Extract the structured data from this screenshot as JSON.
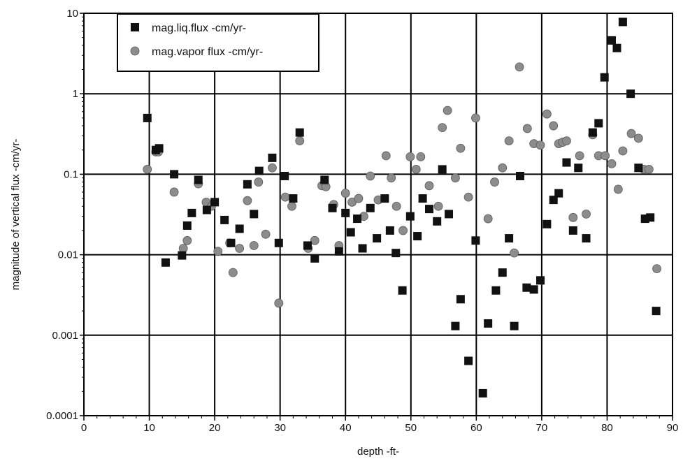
{
  "chart_data": {
    "type": "scatter",
    "xlabel": "depth -ft-",
    "ylabel": "magnitude of vertical flux -cm/yr-",
    "xlim": [
      0,
      90
    ],
    "ylim": [
      0.0001,
      10
    ],
    "y_scale": "log",
    "grid": true,
    "legend_position": "top-left",
    "x_ticks": [
      0,
      10,
      20,
      30,
      40,
      50,
      60,
      70,
      80,
      90
    ],
    "x_tick_labels": [
      "0",
      "10",
      "20",
      "30",
      "40",
      "50",
      "60",
      "70",
      "80",
      "90"
    ],
    "y_ticks": [
      0.0001,
      0.001,
      0.01,
      0.1,
      1,
      10
    ],
    "y_tick_labels": [
      "0.0001",
      "0.001",
      "0.01",
      "0.1",
      "1",
      "10"
    ],
    "series": [
      {
        "name": "mag.liq.flux -cm/yr-",
        "marker": "square",
        "color": "#111111",
        "points": [
          [
            9.7,
            0.5
          ],
          [
            11.0,
            0.2
          ],
          [
            11.5,
            0.21
          ],
          [
            12.5,
            0.008
          ],
          [
            13.8,
            0.1
          ],
          [
            15.0,
            0.0098
          ],
          [
            15.8,
            0.023
          ],
          [
            16.5,
            0.033
          ],
          [
            17.5,
            0.085
          ],
          [
            18.8,
            0.036
          ],
          [
            20.0,
            0.045
          ],
          [
            21.5,
            0.027
          ],
          [
            22.5,
            0.014
          ],
          [
            23.8,
            0.021
          ],
          [
            25.0,
            0.075
          ],
          [
            26.0,
            0.032
          ],
          [
            26.8,
            0.11
          ],
          [
            28.8,
            0.16
          ],
          [
            29.8,
            0.014
          ],
          [
            30.7,
            0.095
          ],
          [
            32.0,
            0.05
          ],
          [
            33.0,
            0.33
          ],
          [
            34.2,
            0.013
          ],
          [
            35.3,
            0.009
          ],
          [
            36.8,
            0.085
          ],
          [
            38.0,
            0.038
          ],
          [
            39.0,
            0.011
          ],
          [
            40.0,
            0.033
          ],
          [
            40.8,
            0.019
          ],
          [
            41.8,
            0.028
          ],
          [
            42.6,
            0.012
          ],
          [
            43.8,
            0.038
          ],
          [
            44.8,
            0.016
          ],
          [
            46.0,
            0.05
          ],
          [
            46.8,
            0.02
          ],
          [
            47.7,
            0.0105
          ],
          [
            48.7,
            0.0036
          ],
          [
            49.9,
            0.03
          ],
          [
            51.0,
            0.017
          ],
          [
            51.8,
            0.05
          ],
          [
            52.8,
            0.037
          ],
          [
            54.0,
            0.026
          ],
          [
            54.8,
            0.115
          ],
          [
            55.8,
            0.032
          ],
          [
            56.8,
            0.0013
          ],
          [
            57.6,
            0.0028
          ],
          [
            58.8,
            0.00048
          ],
          [
            59.9,
            0.015
          ],
          [
            61.0,
            0.00019
          ],
          [
            61.8,
            0.0014
          ],
          [
            63.0,
            0.0036
          ],
          [
            64.0,
            0.006
          ],
          [
            65.0,
            0.016
          ],
          [
            65.8,
            0.0013
          ],
          [
            66.7,
            0.095
          ],
          [
            67.7,
            0.0039
          ],
          [
            68.8,
            0.0037
          ],
          [
            69.8,
            0.0048
          ],
          [
            70.8,
            0.024
          ],
          [
            71.8,
            0.048
          ],
          [
            72.6,
            0.058
          ],
          [
            73.8,
            0.14
          ],
          [
            74.8,
            0.02
          ],
          [
            75.6,
            0.12
          ],
          [
            76.8,
            0.016
          ],
          [
            77.8,
            0.33
          ],
          [
            78.7,
            0.43
          ],
          [
            79.6,
            1.6
          ],
          [
            80.7,
            4.6
          ],
          [
            81.5,
            3.7
          ],
          [
            82.4,
            7.8
          ],
          [
            83.6,
            1.0
          ],
          [
            84.8,
            0.12
          ],
          [
            85.8,
            0.028
          ],
          [
            86.6,
            0.029
          ],
          [
            87.5,
            0.002
          ]
        ]
      },
      {
        "name": "mag.vapor flux -cm/yr-",
        "marker": "circle",
        "color": "#8c8c8c",
        "points": [
          [
            9.7,
            0.115
          ],
          [
            11.0,
            0.19
          ],
          [
            11.4,
            0.19
          ],
          [
            13.8,
            0.06
          ],
          [
            15.2,
            0.012
          ],
          [
            15.8,
            0.015
          ],
          [
            17.5,
            0.076
          ],
          [
            18.7,
            0.045
          ],
          [
            19.5,
            0.04
          ],
          [
            20.5,
            0.011
          ],
          [
            22.3,
            0.014
          ],
          [
            22.8,
            0.006
          ],
          [
            23.8,
            0.012
          ],
          [
            25.0,
            0.047
          ],
          [
            26.0,
            0.013
          ],
          [
            26.7,
            0.08
          ],
          [
            27.8,
            0.018
          ],
          [
            28.8,
            0.12
          ],
          [
            29.8,
            0.0025
          ],
          [
            30.8,
            0.052
          ],
          [
            31.8,
            0.04
          ],
          [
            33.0,
            0.26
          ],
          [
            34.3,
            0.012
          ],
          [
            35.3,
            0.015
          ],
          [
            36.4,
            0.072
          ],
          [
            37.0,
            0.07
          ],
          [
            38.2,
            0.042
          ],
          [
            39.0,
            0.013
          ],
          [
            40.0,
            0.058
          ],
          [
            41.0,
            0.045
          ],
          [
            42.0,
            0.05
          ],
          [
            42.8,
            0.03
          ],
          [
            43.8,
            0.095
          ],
          [
            45.0,
            0.048
          ],
          [
            46.2,
            0.17
          ],
          [
            47.0,
            0.09
          ],
          [
            47.8,
            0.04
          ],
          [
            48.8,
            0.02
          ],
          [
            49.9,
            0.165
          ],
          [
            50.8,
            0.115
          ],
          [
            51.5,
            0.165
          ],
          [
            52.8,
            0.072
          ],
          [
            54.2,
            0.04
          ],
          [
            54.8,
            0.38
          ],
          [
            55.6,
            0.62
          ],
          [
            56.8,
            0.09
          ],
          [
            57.6,
            0.21
          ],
          [
            58.8,
            0.052
          ],
          [
            59.9,
            0.5
          ],
          [
            61.8,
            0.028
          ],
          [
            62.8,
            0.08
          ],
          [
            64.0,
            0.12
          ],
          [
            65.0,
            0.26
          ],
          [
            65.8,
            0.0105
          ],
          [
            66.6,
            2.15
          ],
          [
            67.8,
            0.37
          ],
          [
            68.8,
            0.24
          ],
          [
            69.8,
            0.23
          ],
          [
            70.8,
            0.56
          ],
          [
            71.8,
            0.4
          ],
          [
            72.6,
            0.24
          ],
          [
            73.2,
            0.25
          ],
          [
            73.8,
            0.26
          ],
          [
            74.8,
            0.029
          ],
          [
            75.8,
            0.17
          ],
          [
            76.8,
            0.032
          ],
          [
            77.8,
            0.31
          ],
          [
            78.7,
            0.17
          ],
          [
            79.7,
            0.17
          ],
          [
            80.7,
            0.135
          ],
          [
            81.7,
            0.065
          ],
          [
            82.4,
            0.195
          ],
          [
            83.7,
            0.32
          ],
          [
            84.8,
            0.28
          ],
          [
            85.6,
            0.115
          ],
          [
            86.4,
            0.115
          ],
          [
            87.6,
            0.0067
          ]
        ]
      }
    ]
  }
}
